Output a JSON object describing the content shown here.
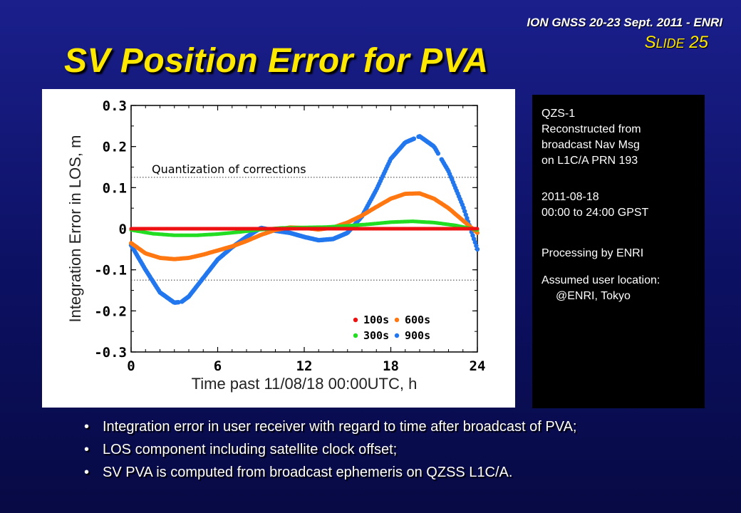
{
  "header": {
    "conference": "ION GNSS 20-23 Sept. 2011 - ENRI",
    "slide_prefix_big": "S",
    "slide_prefix_rest": "LIDE",
    "slide_number": "25"
  },
  "title": "SV Position Error for PVA",
  "info": {
    "block1": [
      "QZS-1",
      "Reconstructed from",
      "broadcast Nav Msg",
      "on L1C/A PRN 193"
    ],
    "block2": [
      "2011-08-18",
      "00:00 to 24:00 GPST"
    ],
    "block3": [
      "Processing by ENRI"
    ],
    "block4": [
      "Assumed user location:",
      "@ENRI, Tokyo"
    ]
  },
  "bullets": [
    "Integration error in user receiver with regard to time after broadcast of PVA;",
    "LOS component including satellite clock offset;",
    "SV PVA is computed from broadcast ephemeris on QZSS L1C/A."
  ],
  "bullet_glyph": "•",
  "colors": {
    "title": "#ffe800",
    "s100": "#ee1111",
    "s300": "#22dd22",
    "s600": "#ff7711",
    "s900": "#2277ee"
  },
  "chart_data": {
    "type": "scatter",
    "xlabel": "Time past 11/08/18 00:00UTC, h",
    "ylabel": "Integration Error in LOS, m",
    "xlim": [
      0,
      24
    ],
    "ylim": [
      -0.3,
      0.3
    ],
    "xticks": [
      "0",
      "6",
      "12",
      "18",
      "24"
    ],
    "yticks": [
      "0.3",
      "0.2",
      "0.1",
      "0",
      "-0.1",
      "-0.2",
      "-0.3"
    ],
    "annotation": "Quantization of corrections",
    "quantization_levels": [
      0.125,
      -0.125
    ],
    "legend_position": "bottom-right",
    "series": [
      {
        "name": "100s",
        "color": "#ee1111",
        "x": [
          0,
          3,
          6,
          9,
          12,
          15,
          18,
          21,
          24
        ],
        "y": [
          0,
          0,
          0,
          0,
          0,
          0,
          0,
          0,
          0
        ]
      },
      {
        "name": "300s",
        "color": "#22dd22",
        "x": [
          0,
          1.5,
          3,
          4.5,
          6,
          7.5,
          9,
          10.5,
          12,
          13.5,
          15,
          16.5,
          18,
          19.5,
          21,
          22.5,
          24
        ],
        "y": [
          -0.003,
          -0.012,
          -0.016,
          -0.016,
          -0.013,
          -0.008,
          -0.002,
          0.002,
          0.003,
          0.004,
          0.007,
          0.011,
          0.016,
          0.018,
          0.015,
          0.008,
          -0.003
        ]
      },
      {
        "name": "600s",
        "color": "#ff7711",
        "x": [
          0,
          1,
          2,
          3,
          4,
          5,
          6,
          7,
          8,
          9,
          10,
          11,
          12,
          13,
          14,
          15,
          16,
          17,
          18,
          19,
          20,
          21,
          22,
          23,
          24
        ],
        "y": [
          -0.035,
          -0.06,
          -0.071,
          -0.074,
          -0.071,
          -0.063,
          -0.053,
          -0.043,
          -0.03,
          -0.015,
          -0.003,
          0.003,
          0.002,
          -0.002,
          0.003,
          0.015,
          0.032,
          0.053,
          0.073,
          0.085,
          0.086,
          0.073,
          0.05,
          0.02,
          -0.01
        ]
      },
      {
        "name": "900s",
        "color": "#2277ee",
        "x": [
          0,
          1,
          2,
          3,
          3.5,
          4,
          5,
          6,
          7,
          8,
          9,
          10,
          11,
          12,
          13,
          14,
          15,
          16,
          17,
          18,
          19,
          20,
          21,
          22,
          23,
          24
        ],
        "y": [
          -0.04,
          -0.1,
          -0.155,
          -0.18,
          -0.178,
          -0.165,
          -0.12,
          -0.075,
          -0.045,
          -0.02,
          0.002,
          -0.005,
          -0.01,
          -0.02,
          -0.028,
          -0.025,
          -0.01,
          0.03,
          0.095,
          0.17,
          0.21,
          0.225,
          0.2,
          0.14,
          0.055,
          -0.05
        ]
      }
    ]
  }
}
